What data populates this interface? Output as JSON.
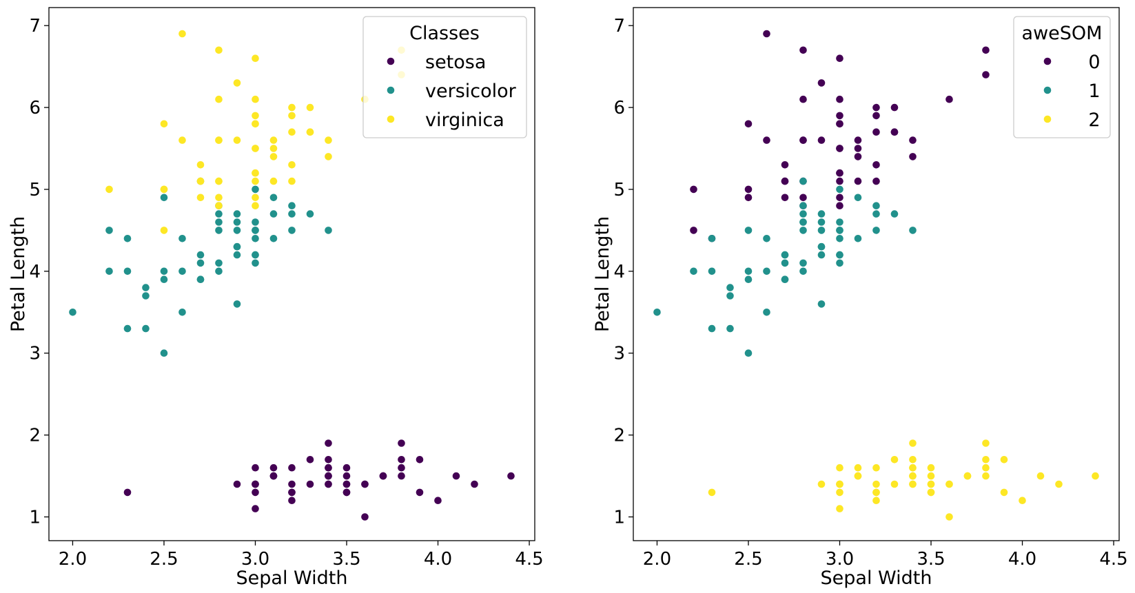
{
  "chart_data": [
    {
      "type": "scatter",
      "xlabel": "Sepal Width",
      "ylabel": "Petal Length",
      "xlim": [
        1.87,
        4.53
      ],
      "ylim": [
        0.71,
        7.22
      ],
      "xticks": [
        "2.0",
        "2.5",
        "3.0",
        "3.5",
        "4.0",
        "4.5"
      ],
      "yticks": [
        "1",
        "2",
        "3",
        "4",
        "5",
        "6",
        "7"
      ],
      "grid": false,
      "legend": {
        "title": "Classes",
        "position": "top-right",
        "entries": [
          "setosa",
          "versicolor",
          "virginica"
        ]
      },
      "series": [
        {
          "name": "setosa",
          "color": "#440154",
          "x": [
            3.5,
            3.0,
            3.2,
            3.1,
            3.6,
            3.9,
            3.4,
            3.4,
            2.9,
            3.1,
            3.7,
            3.4,
            3.0,
            3.0,
            4.0,
            4.4,
            3.9,
            3.5,
            3.8,
            3.8,
            3.4,
            3.7,
            3.6,
            3.3,
            3.4,
            3.0,
            3.4,
            3.5,
            3.4,
            3.2,
            3.1,
            3.4,
            4.1,
            4.2,
            3.1,
            3.2,
            3.5,
            3.6,
            3.0,
            3.4,
            3.5,
            2.3,
            3.2,
            3.5,
            3.8,
            3.0,
            3.8,
            3.2,
            3.7,
            3.3
          ],
          "y": [
            1.4,
            1.4,
            1.3,
            1.5,
            1.4,
            1.7,
            1.4,
            1.5,
            1.4,
            1.5,
            1.5,
            1.6,
            1.4,
            1.1,
            1.2,
            1.5,
            1.3,
            1.4,
            1.7,
            1.5,
            1.7,
            1.5,
            1.0,
            1.7,
            1.9,
            1.6,
            1.6,
            1.5,
            1.4,
            1.6,
            1.6,
            1.5,
            1.5,
            1.4,
            1.5,
            1.2,
            1.3,
            1.4,
            1.3,
            1.5,
            1.3,
            1.3,
            1.3,
            1.6,
            1.9,
            1.4,
            1.6,
            1.4,
            1.5,
            1.4
          ]
        },
        {
          "name": "versicolor",
          "color": "#21918c",
          "x": [
            3.2,
            3.2,
            3.1,
            2.3,
            2.8,
            2.8,
            3.3,
            2.4,
            2.9,
            2.7,
            2.0,
            3.0,
            2.2,
            2.9,
            2.9,
            3.1,
            3.0,
            2.7,
            2.2,
            2.5,
            3.2,
            2.8,
            2.5,
            2.8,
            2.9,
            3.0,
            2.8,
            3.0,
            2.9,
            2.6,
            2.4,
            2.4,
            2.7,
            2.7,
            3.0,
            3.4,
            3.1,
            2.3,
            3.0,
            2.5,
            2.6,
            3.0,
            2.6,
            2.3,
            2.7,
            3.0,
            2.9,
            2.9,
            2.5,
            2.8
          ],
          "y": [
            4.7,
            4.5,
            4.9,
            4.0,
            4.6,
            4.5,
            4.7,
            3.3,
            4.6,
            3.9,
            3.5,
            4.2,
            4.0,
            4.7,
            3.6,
            4.4,
            4.5,
            4.1,
            4.5,
            3.9,
            4.8,
            4.0,
            4.9,
            4.7,
            4.3,
            4.4,
            4.8,
            5.0,
            4.5,
            3.5,
            3.8,
            3.7,
            3.9,
            5.1,
            4.5,
            4.5,
            4.7,
            4.4,
            4.1,
            4.0,
            4.4,
            4.6,
            4.0,
            3.3,
            4.2,
            4.2,
            4.2,
            4.3,
            3.0,
            4.1
          ]
        },
        {
          "name": "virginica",
          "color": "#fde725",
          "x": [
            3.3,
            2.7,
            3.0,
            2.9,
            3.0,
            3.0,
            2.5,
            2.9,
            2.5,
            3.6,
            3.2,
            2.7,
            3.0,
            2.5,
            2.8,
            3.2,
            3.0,
            3.8,
            2.6,
            2.2,
            3.2,
            2.8,
            2.8,
            2.7,
            3.3,
            3.2,
            2.8,
            3.0,
            2.8,
            3.0,
            2.8,
            3.8,
            2.8,
            2.8,
            2.6,
            3.0,
            3.4,
            3.1,
            3.0,
            3.1,
            3.1,
            3.1,
            2.7,
            3.2,
            3.3,
            3.0,
            2.5,
            3.0,
            3.4,
            3.0
          ],
          "y": [
            6.0,
            5.1,
            5.9,
            5.6,
            5.8,
            6.6,
            4.5,
            6.3,
            5.8,
            6.1,
            5.1,
            5.3,
            5.5,
            5.0,
            5.1,
            5.3,
            5.5,
            6.7,
            6.9,
            5.0,
            5.7,
            4.9,
            6.7,
            4.9,
            5.7,
            6.0,
            4.8,
            4.9,
            5.6,
            5.8,
            6.1,
            6.4,
            5.6,
            5.1,
            5.6,
            6.1,
            5.6,
            5.5,
            4.8,
            5.4,
            5.6,
            5.1,
            5.1,
            5.9,
            5.7,
            5.2,
            5.0,
            5.2,
            5.4,
            5.1
          ]
        }
      ]
    },
    {
      "type": "scatter",
      "xlabel": "Sepal Width",
      "ylabel": "Petal Length",
      "xlim": [
        1.87,
        4.53
      ],
      "ylim": [
        0.71,
        7.22
      ],
      "xticks": [
        "2.0",
        "2.5",
        "3.0",
        "3.5",
        "4.0",
        "4.5"
      ],
      "yticks": [
        "1",
        "2",
        "3",
        "4",
        "5",
        "6",
        "7"
      ],
      "grid": false,
      "legend": {
        "title": "aweSOM",
        "position": "top-right",
        "entries": [
          "0",
          "1",
          "2"
        ]
      },
      "series": [
        {
          "name": "0",
          "color": "#440154",
          "x": [
            3.3,
            2.7,
            3.0,
            2.9,
            3.0,
            3.0,
            2.9,
            2.5,
            3.6,
            3.2,
            2.7,
            3.0,
            2.5,
            2.8,
            3.2,
            3.0,
            3.8,
            2.6,
            2.2,
            3.2,
            2.8,
            2.8,
            2.7,
            3.3,
            3.2,
            2.8,
            3.0,
            2.8,
            3.0,
            2.8,
            3.8,
            2.8,
            2.6,
            3.0,
            3.4,
            3.1,
            3.0,
            3.1,
            3.1,
            2.7,
            3.2,
            3.3,
            3.0,
            2.5,
            3.0,
            3.4,
            3.0,
            2.2,
            2.3,
            3.1
          ],
          "y": [
            6.0,
            5.1,
            5.9,
            5.6,
            5.8,
            6.6,
            6.3,
            5.8,
            6.1,
            5.1,
            5.3,
            5.5,
            5.0,
            5.1,
            5.3,
            5.5,
            6.7,
            6.9,
            5.0,
            5.7,
            4.9,
            6.7,
            4.9,
            5.7,
            6.0,
            4.8,
            4.9,
            5.6,
            5.8,
            6.1,
            6.4,
            5.6,
            5.6,
            6.1,
            5.6,
            5.5,
            4.8,
            5.4,
            5.6,
            5.1,
            5.9,
            5.7,
            5.2,
            4.9,
            5.2,
            5.4,
            5.1,
            4.5,
            4.4,
            5.1
          ]
        },
        {
          "name": "1",
          "color": "#21918c",
          "x": [
            3.2,
            3.2,
            3.1,
            2.3,
            2.8,
            2.8,
            3.3,
            2.4,
            2.9,
            2.7,
            2.0,
            3.0,
            2.2,
            2.9,
            2.9,
            3.1,
            3.0,
            2.7,
            2.5,
            3.2,
            2.8,
            2.8,
            2.9,
            3.0,
            2.8,
            3.0,
            2.9,
            2.6,
            2.4,
            2.4,
            2.7,
            2.8,
            3.0,
            3.4,
            2.3,
            3.0,
            2.5,
            2.6,
            3.0,
            2.6,
            2.3,
            2.7,
            3.0,
            2.9,
            2.9,
            2.5,
            2.8,
            2.5,
            2.7,
            2.8
          ],
          "y": [
            4.7,
            4.5,
            4.9,
            4.0,
            4.6,
            4.5,
            4.7,
            3.3,
            4.6,
            3.9,
            3.5,
            4.2,
            4.0,
            4.7,
            3.6,
            4.4,
            4.5,
            4.1,
            3.9,
            4.8,
            4.0,
            4.7,
            4.3,
            4.4,
            4.8,
            5.0,
            4.5,
            3.5,
            3.8,
            3.7,
            3.9,
            5.1,
            4.5,
            4.5,
            4.4,
            4.1,
            4.0,
            4.4,
            4.6,
            4.0,
            3.3,
            4.2,
            4.2,
            4.2,
            4.3,
            3.0,
            4.1,
            4.5,
            4.2,
            4.6
          ]
        },
        {
          "name": "2",
          "color": "#fde725",
          "x": [
            3.5,
            3.0,
            3.2,
            3.1,
            3.6,
            3.9,
            3.4,
            3.4,
            2.9,
            3.1,
            3.7,
            3.4,
            3.0,
            3.0,
            4.0,
            4.4,
            3.9,
            3.5,
            3.8,
            3.8,
            3.4,
            3.7,
            3.6,
            3.3,
            3.4,
            3.0,
            3.4,
            3.5,
            3.4,
            3.2,
            3.1,
            3.4,
            4.1,
            4.2,
            3.1,
            3.2,
            3.5,
            3.6,
            3.0,
            3.4,
            3.5,
            2.3,
            3.2,
            3.5,
            3.8,
            3.0,
            3.8,
            3.2,
            3.7,
            3.3
          ],
          "y": [
            1.4,
            1.4,
            1.3,
            1.5,
            1.4,
            1.7,
            1.4,
            1.5,
            1.4,
            1.5,
            1.5,
            1.6,
            1.4,
            1.1,
            1.2,
            1.5,
            1.3,
            1.4,
            1.7,
            1.5,
            1.7,
            1.5,
            1.0,
            1.7,
            1.9,
            1.6,
            1.6,
            1.5,
            1.4,
            1.6,
            1.6,
            1.5,
            1.5,
            1.4,
            1.5,
            1.2,
            1.3,
            1.4,
            1.3,
            1.5,
            1.3,
            1.3,
            1.3,
            1.6,
            1.9,
            1.4,
            1.6,
            1.4,
            1.5,
            1.4
          ]
        }
      ]
    }
  ]
}
